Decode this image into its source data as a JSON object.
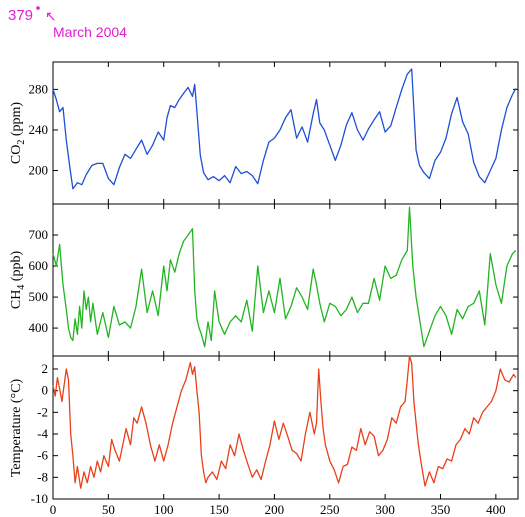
{
  "annotation": {
    "value": "379",
    "arrow": "↖",
    "date": "March 2004",
    "color": "#e020d0"
  },
  "chart_data": [
    {
      "type": "line",
      "id": "co2",
      "ylabel": {
        "main": "CO",
        "sub": "2",
        "tail": " (ppm)"
      },
      "ylim": [
        167,
        307
      ],
      "yticks": [
        200,
        240,
        280
      ],
      "xlim": [
        0,
        420
      ],
      "color": "#1f4fd6",
      "series": [
        {
          "x": [
            0,
            3,
            6,
            9,
            12,
            15,
            18,
            22,
            26,
            30,
            35,
            40,
            45,
            50,
            55,
            60,
            65,
            70,
            75,
            80,
            85,
            90,
            95,
            100,
            103,
            106,
            110,
            114,
            118,
            122,
            126,
            128,
            130,
            133,
            136,
            140,
            145,
            150,
            155,
            160,
            165,
            170,
            175,
            180,
            185,
            190,
            195,
            200,
            205,
            210,
            215,
            220,
            225,
            230,
            235,
            238,
            241,
            245,
            250,
            255,
            260,
            265,
            270,
            275,
            280,
            285,
            290,
            295,
            300,
            305,
            310,
            315,
            320,
            324,
            326,
            328,
            331,
            335,
            340,
            345,
            350,
            355,
            360,
            365,
            370,
            375,
            380,
            385,
            390,
            395,
            400,
            405,
            410,
            415,
            418
          ],
          "y": [
            280,
            270,
            258,
            262,
            230,
            205,
            182,
            188,
            186,
            196,
            205,
            207,
            207,
            192,
            186,
            203,
            216,
            212,
            221,
            230,
            216,
            225,
            238,
            230,
            252,
            264,
            262,
            270,
            276,
            282,
            273,
            285,
            258,
            215,
            198,
            191,
            194,
            190,
            195,
            188,
            204,
            197,
            199,
            195,
            187,
            210,
            228,
            232,
            240,
            252,
            260,
            232,
            243,
            228,
            256,
            270,
            247,
            240,
            225,
            210,
            225,
            245,
            257,
            240,
            230,
            241,
            250,
            258,
            238,
            244,
            262,
            280,
            295,
            300,
            260,
            220,
            205,
            198,
            192,
            210,
            218,
            232,
            256,
            272,
            248,
            236,
            208,
            194,
            188,
            200,
            212,
            240,
            262,
            275,
            281
          ]
        }
      ]
    },
    {
      "type": "line",
      "id": "ch4",
      "ylabel": {
        "main": "CH",
        "sub": "4",
        "tail": " (ppb)"
      },
      "ylim": [
        310,
        800
      ],
      "yticks": [
        400,
        500,
        600,
        700
      ],
      "xlim": [
        0,
        420
      ],
      "color": "#22b422",
      "series": [
        {
          "x": [
            0,
            3,
            6,
            9,
            12,
            14,
            16,
            18,
            20,
            22,
            24,
            26,
            28,
            30,
            32,
            34,
            36,
            40,
            45,
            50,
            55,
            60,
            65,
            70,
            75,
            80,
            85,
            90,
            95,
            100,
            103,
            106,
            110,
            114,
            118,
            122,
            126,
            128,
            130,
            132,
            134,
            137,
            140,
            143,
            146,
            150,
            155,
            160,
            165,
            170,
            175,
            180,
            185,
            190,
            195,
            200,
            205,
            210,
            215,
            220,
            225,
            230,
            235,
            238,
            241,
            245,
            250,
            255,
            260,
            265,
            270,
            275,
            280,
            285,
            290,
            295,
            300,
            305,
            310,
            315,
            320,
            322,
            325,
            328,
            331,
            335,
            340,
            345,
            350,
            355,
            360,
            365,
            370,
            375,
            380,
            385,
            390,
            395,
            400,
            405,
            410,
            415,
            418
          ],
          "y": [
            640,
            600,
            670,
            540,
            460,
            400,
            370,
            360,
            430,
            380,
            470,
            400,
            520,
            460,
            500,
            420,
            480,
            380,
            450,
            370,
            470,
            410,
            420,
            400,
            470,
            590,
            450,
            520,
            440,
            600,
            520,
            620,
            580,
            640,
            680,
            700,
            720,
            520,
            430,
            400,
            380,
            340,
            420,
            360,
            520,
            420,
            380,
            420,
            440,
            420,
            490,
            390,
            600,
            450,
            520,
            450,
            560,
            430,
            470,
            530,
            500,
            460,
            590,
            540,
            480,
            420,
            480,
            470,
            440,
            460,
            500,
            450,
            480,
            480,
            560,
            490,
            600,
            560,
            570,
            620,
            650,
            790,
            600,
            500,
            430,
            340,
            390,
            440,
            470,
            440,
            380,
            460,
            430,
            470,
            480,
            520,
            410,
            640,
            540,
            480,
            600,
            640,
            650
          ]
        }
      ]
    },
    {
      "type": "line",
      "id": "temperature",
      "ylabel": {
        "main": "Temperature (°C)",
        "sub": "",
        "tail": ""
      },
      "ylim": [
        -10,
        3.2
      ],
      "yticks": [
        -10,
        -8,
        -6,
        -4,
        -2,
        0,
        2
      ],
      "xlim": [
        0,
        420
      ],
      "xticks": [
        0,
        50,
        100,
        150,
        200,
        250,
        300,
        350,
        400
      ],
      "color": "#e8401a",
      "series": [
        {
          "x": [
            0,
            2,
            4,
            6,
            8,
            10,
            12,
            14,
            16,
            18,
            20,
            22,
            25,
            28,
            31,
            34,
            37,
            40,
            43,
            46,
            50,
            53,
            56,
            60,
            63,
            66,
            70,
            73,
            76,
            80,
            84,
            88,
            92,
            96,
            100,
            104,
            108,
            112,
            116,
            120,
            124,
            126,
            128,
            130,
            132,
            134,
            136,
            138,
            140,
            144,
            148,
            152,
            156,
            160,
            164,
            168,
            172,
            176,
            180,
            184,
            188,
            192,
            196,
            200,
            204,
            208,
            212,
            216,
            220,
            224,
            228,
            232,
            236,
            238,
            240,
            242,
            244,
            246,
            250,
            254,
            258,
            262,
            266,
            270,
            274,
            278,
            282,
            286,
            290,
            294,
            298,
            302,
            306,
            310,
            314,
            318,
            320,
            322,
            324,
            326,
            328,
            330,
            333,
            336,
            340,
            344,
            348,
            352,
            356,
            360,
            364,
            368,
            372,
            376,
            380,
            384,
            388,
            392,
            396,
            400,
            404,
            408,
            412,
            416,
            418
          ],
          "y": [
            0.5,
            -0.5,
            1.2,
            0.2,
            -1,
            0.5,
            2,
            1,
            -4,
            -6,
            -8.5,
            -7,
            -9,
            -7.5,
            -8.5,
            -7,
            -8,
            -6.5,
            -7.5,
            -6,
            -7,
            -4.5,
            -5.5,
            -6.5,
            -5,
            -3.5,
            -5,
            -2.5,
            -3,
            -1.5,
            -3,
            -5,
            -6.5,
            -5,
            -6.5,
            -5,
            -3,
            -1.5,
            0,
            1,
            2.6,
            1.5,
            2.2,
            0,
            -2,
            -6,
            -7.5,
            -8.5,
            -8,
            -7.5,
            -8.2,
            -6.5,
            -7.2,
            -5,
            -6,
            -4,
            -5.5,
            -6.8,
            -8,
            -7.3,
            -8.2,
            -6.5,
            -5,
            -2.8,
            -4.5,
            -3,
            -4.2,
            -5.5,
            -5.8,
            -6.5,
            -4,
            -2,
            -4,
            -3,
            2,
            -1,
            -3.5,
            -5,
            -6.5,
            -7.3,
            -8.5,
            -7,
            -6.8,
            -5.2,
            -5.5,
            -3.5,
            -5,
            -3.8,
            -4.2,
            -6,
            -5.5,
            -4.5,
            -2.5,
            -3,
            -1.5,
            -1,
            1,
            3.2,
            2.5,
            -1,
            -3,
            -5,
            -7,
            -8.8,
            -7.5,
            -8.5,
            -7,
            -7.2,
            -6.3,
            -6.5,
            -5,
            -4.5,
            -3.5,
            -4,
            -2.5,
            -3,
            -2,
            -1.5,
            -1,
            0,
            2,
            1,
            0.8,
            1.5,
            1.2
          ]
        }
      ]
    }
  ]
}
